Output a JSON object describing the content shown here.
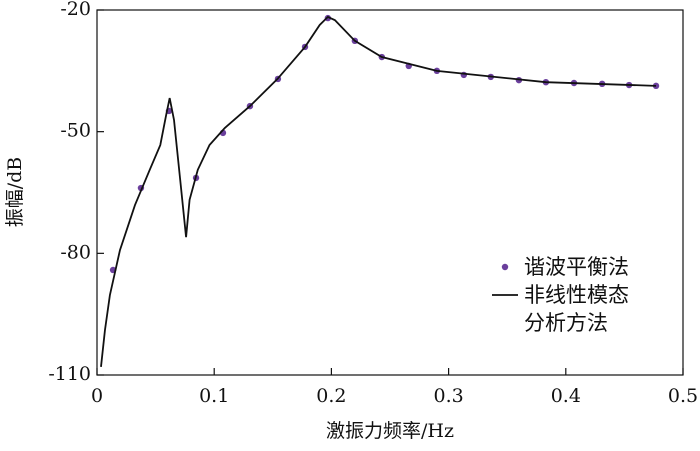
{
  "chart_data": {
    "type": "line",
    "xlabel": "激振力频率/Hz",
    "ylabel": "振幅/dB",
    "xlim": [
      0,
      0.5
    ],
    "xticks": [
      0,
      0.1,
      0.2,
      0.3,
      0.4,
      0.5
    ],
    "ylim": [
      -110,
      -20
    ],
    "yticks": [
      -110,
      -80,
      -50,
      -20
    ],
    "legend": "lower right",
    "series": [
      {
        "name": "谐波平衡法",
        "type": "scatter",
        "color": "#6a3f9c",
        "x": [
          0.0137,
          0.0375,
          0.0614,
          0.0845,
          0.1075,
          0.1305,
          0.1544,
          0.1775,
          0.197,
          0.22,
          0.243,
          0.266,
          0.29,
          0.313,
          0.336,
          0.36,
          0.383,
          0.407,
          0.431,
          0.454,
          0.477
        ],
        "values": [
          -84.1,
          -63.9,
          -44.9,
          -61.4,
          -50.3,
          -43.7,
          -37.0,
          -29.1,
          -22.0,
          -27.6,
          -31.6,
          -33.8,
          -35.0,
          -36.0,
          -36.5,
          -37.3,
          -37.8,
          -38.0,
          -38.2,
          -38.5,
          -38.7
        ]
      },
      {
        "name": "非线性模态\n分析方法",
        "type": "line",
        "color": "#111111",
        "x": [
          0.0034,
          0.0068,
          0.011,
          0.0196,
          0.0324,
          0.045,
          0.054,
          0.059,
          0.062,
          0.0657,
          0.071,
          0.076,
          0.079,
          0.086,
          0.096,
          0.109,
          0.1305,
          0.154,
          0.1775,
          0.19,
          0.197,
          0.203,
          0.22,
          0.243,
          0.29,
          0.383,
          0.477
        ],
        "values": [
          -108,
          -98.9,
          -90.3,
          -79.2,
          -68.1,
          -59.4,
          -53.3,
          -45.9,
          -41.7,
          -47.1,
          -61.9,
          -76.0,
          -66.8,
          -59.4,
          -53.3,
          -49.1,
          -43.7,
          -37.0,
          -29.1,
          -23.7,
          -21.7,
          -22.5,
          -27.6,
          -31.6,
          -35.0,
          -37.8,
          -38.7
        ]
      }
    ]
  }
}
